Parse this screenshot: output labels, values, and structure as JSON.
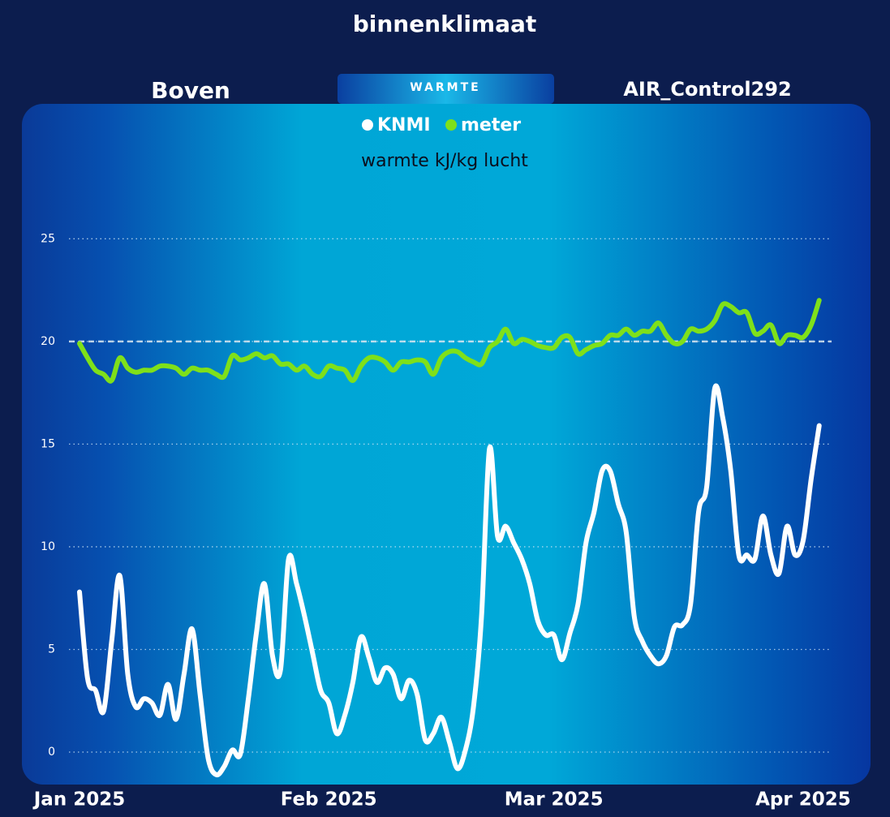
{
  "header": {
    "title": "binnenklimaat",
    "left_label": "Boven",
    "tab": "WARMTE",
    "right_label": "AIR_Control292"
  },
  "chart_data": {
    "type": "line",
    "title": "warmte kJ/kg lucht",
    "categories": [
      "Jan 2025",
      null,
      null,
      null,
      null,
      null,
      null,
      null,
      null,
      null,
      null,
      null,
      null,
      null,
      null,
      null,
      null,
      null,
      null,
      null,
      null,
      null,
      null,
      null,
      null,
      null,
      null,
      null,
      null,
      null,
      null,
      "Feb 2025",
      null,
      null,
      null,
      null,
      null,
      null,
      null,
      null,
      null,
      null,
      null,
      null,
      null,
      null,
      null,
      null,
      null,
      null,
      null,
      null,
      null,
      null,
      null,
      null,
      null,
      null,
      null,
      "Mar 2025",
      null,
      null,
      null,
      null,
      null,
      null,
      null,
      null,
      null,
      null,
      null,
      null,
      null,
      null,
      null,
      null,
      null,
      null,
      null,
      null,
      null,
      null,
      null,
      null,
      null,
      null,
      null,
      null,
      null,
      null,
      "Apr 2025",
      null,
      null
    ],
    "series": [
      {
        "name": "KNMI",
        "color": "#ffffff",
        "values": [
          7.8,
          3.6,
          3.0,
          2.0,
          5.4,
          8.6,
          3.8,
          2.2,
          2.6,
          2.4,
          1.8,
          3.3,
          1.6,
          3.8,
          6.0,
          2.8,
          -0.3,
          -1.1,
          -0.7,
          0.1,
          -0.1,
          2.6,
          5.8,
          8.2,
          4.7,
          4.0,
          9.4,
          8.2,
          6.6,
          4.8,
          3.0,
          2.4,
          0.9,
          1.8,
          3.4,
          5.6,
          4.6,
          3.4,
          4.1,
          3.8,
          2.6,
          3.5,
          2.8,
          0.6,
          0.9,
          1.7,
          0.5,
          -0.8,
          0.1,
          2.2,
          6.6,
          14.8,
          10.5,
          11.0,
          10.2,
          9.4,
          8.2,
          6.4,
          5.7,
          5.7,
          4.5,
          5.8,
          7.2,
          10.2,
          11.7,
          13.7,
          13.7,
          12.1,
          10.7,
          6.6,
          5.4,
          4.7,
          4.3,
          4.7,
          6.1,
          6.2,
          7.2,
          11.7,
          12.9,
          17.7,
          16.3,
          13.7,
          9.6,
          9.6,
          9.4,
          11.5,
          9.6,
          8.7,
          11.0,
          9.6,
          10.3,
          13.3,
          15.9
        ]
      },
      {
        "name": "meter",
        "color": "#7fe01a",
        "values": [
          19.9,
          19.2,
          18.6,
          18.4,
          18.1,
          19.2,
          18.7,
          18.5,
          18.6,
          18.6,
          18.8,
          18.8,
          18.7,
          18.4,
          18.7,
          18.6,
          18.6,
          18.4,
          18.3,
          19.3,
          19.1,
          19.2,
          19.4,
          19.2,
          19.3,
          18.9,
          18.9,
          18.6,
          18.8,
          18.4,
          18.3,
          18.8,
          18.7,
          18.6,
          18.1,
          18.8,
          19.2,
          19.2,
          19.0,
          18.6,
          19.0,
          19.0,
          19.1,
          19.0,
          18.4,
          19.2,
          19.5,
          19.5,
          19.2,
          19.0,
          18.9,
          19.7,
          20.0,
          20.6,
          19.9,
          20.1,
          20.0,
          19.8,
          19.7,
          19.7,
          20.2,
          20.2,
          19.4,
          19.6,
          19.8,
          19.9,
          20.3,
          20.3,
          20.6,
          20.3,
          20.5,
          20.5,
          20.9,
          20.3,
          19.9,
          20.0,
          20.6,
          20.5,
          20.6,
          21.0,
          21.8,
          21.7,
          21.4,
          21.4,
          20.4,
          20.5,
          20.8,
          19.9,
          20.3,
          20.3,
          20.2,
          20.8,
          22.0
        ]
      }
    ],
    "ylim": [
      -1.5,
      26
    ],
    "yticks": [
      0,
      5,
      10,
      15,
      20,
      25
    ],
    "grid": true,
    "reference_line": 20
  }
}
